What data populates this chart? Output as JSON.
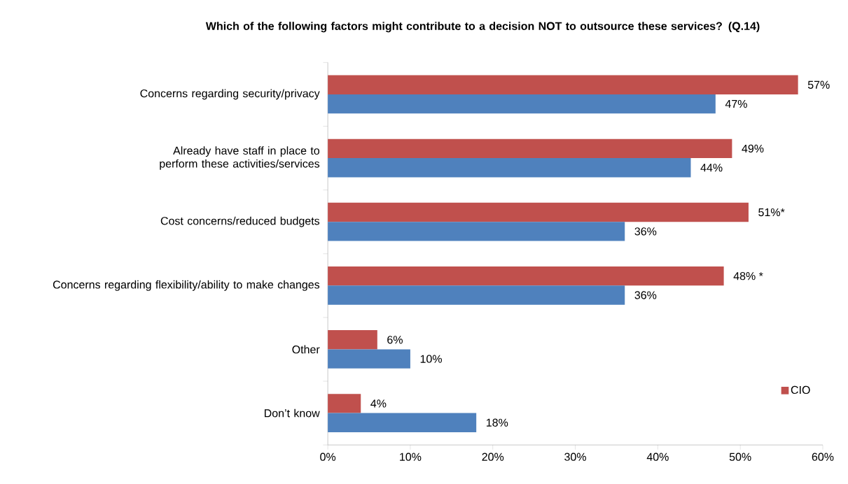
{
  "chart_data": {
    "type": "bar",
    "orientation": "horizontal",
    "title": "Which of the following factors might contribute to a decision NOT to outsource these services? (Q.14)",
    "categories": [
      "Concerns regarding security/privacy",
      "Already have staff in place to perform these activities/services",
      "Cost concerns/reduced budgets",
      "Concerns regarding flexibility/ability  to make changes",
      "Other",
      "Don’t know"
    ],
    "series": [
      {
        "name": "CIO",
        "color": "#c0504d",
        "values": [
          57,
          49,
          51,
          48,
          6,
          4
        ],
        "value_labels": [
          "57%",
          "49%",
          "51%*",
          "48% *",
          "6%",
          "4%"
        ]
      },
      {
        "color": "#4f81bd",
        "values": [
          47,
          44,
          36,
          36,
          10,
          18
        ],
        "value_labels": [
          "47%",
          "44%",
          "36%",
          "36%",
          "10%",
          "18%"
        ]
      }
    ],
    "xlim": [
      0,
      60
    ],
    "xticks": [
      {
        "value": 0,
        "label": "0%"
      },
      {
        "value": 10,
        "label": "10%"
      },
      {
        "value": 20,
        "label": "20%"
      },
      {
        "value": 30,
        "label": "30%"
      },
      {
        "value": 40,
        "label": "40%"
      },
      {
        "value": 50,
        "label": "50%"
      },
      {
        "value": 60,
        "label": "60%"
      }
    ],
    "grid": false,
    "legend": "bottom right"
  }
}
